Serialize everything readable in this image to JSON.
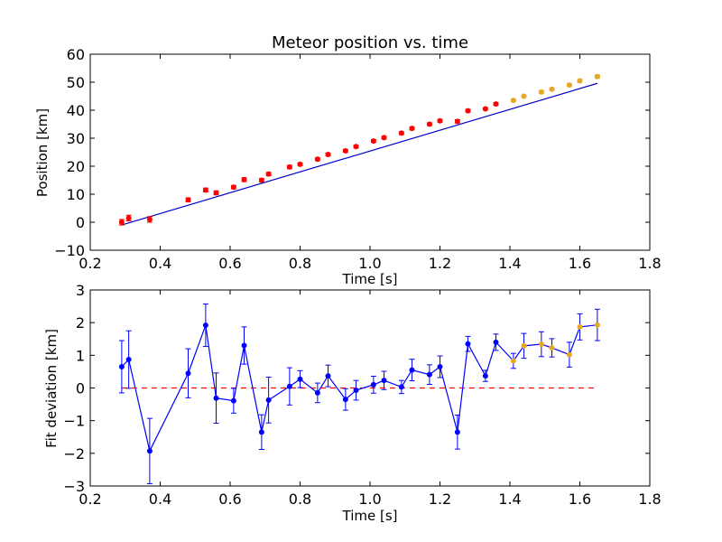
{
  "chart_data": [
    {
      "type": "scatter",
      "title": "Meteor position vs. time",
      "xlabel": "Time [s]",
      "ylabel": "Position [km]",
      "xlim": [
        0.2,
        1.8
      ],
      "ylim": [
        -10,
        60
      ],
      "xticks": [
        "0.2",
        "0.4",
        "0.6",
        "0.8",
        "1.0",
        "1.2",
        "1.4",
        "1.6",
        "1.8"
      ],
      "yticks": [
        "−10",
        "0",
        "10",
        "20",
        "30",
        "40",
        "50",
        "60"
      ],
      "grid": false,
      "fit_line": {
        "x": [
          0.29,
          1.65
        ],
        "y": [
          -1.0,
          49.6
        ],
        "color": "#0000cc"
      },
      "series": [
        {
          "color": "#ff0000",
          "points": [
            {
              "x": 0.29,
              "y": 0.0,
              "err": 1.0
            },
            {
              "x": 0.31,
              "y": 1.5,
              "err": 1.0
            },
            {
              "x": 0.37,
              "y": 1.0,
              "err": 1.0
            },
            {
              "x": 0.48,
              "y": 8.0,
              "err": 0.7
            },
            {
              "x": 0.53,
              "y": 11.5,
              "err": 0.7
            },
            {
              "x": 0.56,
              "y": 10.5,
              "err": 0.7
            },
            {
              "x": 0.61,
              "y": 12.5,
              "err": 0.6
            },
            {
              "x": 0.64,
              "y": 15.2,
              "err": 0.7
            },
            {
              "x": 0.69,
              "y": 15.0,
              "err": 0.6
            },
            {
              "x": 0.71,
              "y": 17.2,
              "err": 0.6
            },
            {
              "x": 0.77,
              "y": 19.7,
              "err": 0.6
            },
            {
              "x": 0.8,
              "y": 20.7,
              "err": 0.5
            },
            {
              "x": 0.85,
              "y": 22.5,
              "err": 0.5
            },
            {
              "x": 0.88,
              "y": 24.2,
              "err": 0.5
            },
            {
              "x": 0.93,
              "y": 25.5,
              "err": 0.5
            },
            {
              "x": 0.96,
              "y": 27.0,
              "err": 0.5
            },
            {
              "x": 1.01,
              "y": 29.0,
              "err": 0.5
            },
            {
              "x": 1.04,
              "y": 30.2,
              "err": 0.5
            },
            {
              "x": 1.09,
              "y": 31.8,
              "err": 0.5
            },
            {
              "x": 1.12,
              "y": 33.5,
              "err": 0.5
            },
            {
              "x": 1.17,
              "y": 35.0,
              "err": 0.5
            },
            {
              "x": 1.2,
              "y": 36.2,
              "err": 0.5
            },
            {
              "x": 1.25,
              "y": 36.0,
              "err": 0.6
            },
            {
              "x": 1.28,
              "y": 39.8,
              "err": 0.5
            },
            {
              "x": 1.33,
              "y": 40.5,
              "err": 0.4
            },
            {
              "x": 1.36,
              "y": 42.2,
              "err": 0.5
            }
          ]
        },
        {
          "color": "#e3a826",
          "points": [
            {
              "x": 1.41,
              "y": 43.5,
              "err": 0.4
            },
            {
              "x": 1.44,
              "y": 45.0,
              "err": 0.4
            },
            {
              "x": 1.49,
              "y": 46.5,
              "err": 0.5
            },
            {
              "x": 1.52,
              "y": 47.5,
              "err": 0.4
            },
            {
              "x": 1.57,
              "y": 49.0,
              "err": 0.4
            },
            {
              "x": 1.6,
              "y": 50.5,
              "err": 0.5
            },
            {
              "x": 1.65,
              "y": 52.0,
              "err": 0.6
            }
          ]
        }
      ]
    },
    {
      "type": "line",
      "title": "",
      "xlabel": "Time [s]",
      "ylabel": "Fit deviation [km]",
      "xlim": [
        0.2,
        1.8
      ],
      "ylim": [
        -3,
        3
      ],
      "xticks": [
        "0.2",
        "0.4",
        "0.6",
        "0.8",
        "1.0",
        "1.2",
        "1.4",
        "1.6",
        "1.8"
      ],
      "yticks": [
        "−3",
        "−2",
        "−1",
        "0",
        "1",
        "2",
        "3"
      ],
      "grid": false,
      "zero_line": {
        "y": 0,
        "x": [
          0.29,
          1.65
        ],
        "color": "#ff0000",
        "style": "dashed"
      },
      "line_color": "#0000ff",
      "points": [
        {
          "x": 0.29,
          "y": 0.65,
          "err": 0.8,
          "color": "#0000ff"
        },
        {
          "x": 0.31,
          "y": 0.87,
          "err": 0.88,
          "color": "#0000ff"
        },
        {
          "x": 0.37,
          "y": -1.93,
          "err": 1.0,
          "color": "#0000ff"
        },
        {
          "x": 0.48,
          "y": 0.45,
          "err": 0.75,
          "color": "#0000ff"
        },
        {
          "x": 0.53,
          "y": 1.92,
          "err": 0.65,
          "color": "#0000ff"
        },
        {
          "x": 0.56,
          "y": -0.31,
          "err": 0.77,
          "color": "#0000ff"
        },
        {
          "x": 0.61,
          "y": -0.39,
          "err": 0.38,
          "color": "#0000ff"
        },
        {
          "x": 0.64,
          "y": 1.3,
          "err": 0.57,
          "color": "#0000ff"
        },
        {
          "x": 0.69,
          "y": -1.35,
          "err": 0.53,
          "color": "#0000ff"
        },
        {
          "x": 0.71,
          "y": -0.37,
          "err": 0.7,
          "color": "#0000ff"
        },
        {
          "x": 0.77,
          "y": 0.05,
          "err": 0.57,
          "color": "#0000ff"
        },
        {
          "x": 0.8,
          "y": 0.27,
          "err": 0.26,
          "color": "#0000ff"
        },
        {
          "x": 0.85,
          "y": -0.15,
          "err": 0.3,
          "color": "#0000ff"
        },
        {
          "x": 0.88,
          "y": 0.37,
          "err": 0.33,
          "color": "#0000ff"
        },
        {
          "x": 0.93,
          "y": -0.35,
          "err": 0.33,
          "color": "#0000ff"
        },
        {
          "x": 0.96,
          "y": -0.07,
          "err": 0.3,
          "color": "#0000ff"
        },
        {
          "x": 1.01,
          "y": 0.1,
          "err": 0.26,
          "color": "#0000ff"
        },
        {
          "x": 1.04,
          "y": 0.23,
          "err": 0.28,
          "color": "#0000ff"
        },
        {
          "x": 1.09,
          "y": 0.03,
          "err": 0.2,
          "color": "#0000ff"
        },
        {
          "x": 1.12,
          "y": 0.55,
          "err": 0.33,
          "color": "#0000ff"
        },
        {
          "x": 1.17,
          "y": 0.41,
          "err": 0.3,
          "color": "#0000ff"
        },
        {
          "x": 1.2,
          "y": 0.65,
          "err": 0.33,
          "color": "#0000ff"
        },
        {
          "x": 1.25,
          "y": -1.35,
          "err": 0.52,
          "color": "#0000ff"
        },
        {
          "x": 1.28,
          "y": 1.35,
          "err": 0.23,
          "color": "#0000ff"
        },
        {
          "x": 1.33,
          "y": 0.37,
          "err": 0.17,
          "color": "#0000ff"
        },
        {
          "x": 1.36,
          "y": 1.4,
          "err": 0.25,
          "color": "#0000ff"
        },
        {
          "x": 1.41,
          "y": 0.83,
          "err": 0.23,
          "color": "#e3a826"
        },
        {
          "x": 1.44,
          "y": 1.29,
          "err": 0.38,
          "color": "#e3a826"
        },
        {
          "x": 1.49,
          "y": 1.34,
          "err": 0.38,
          "color": "#e3a826"
        },
        {
          "x": 1.52,
          "y": 1.23,
          "err": 0.28,
          "color": "#e3a826"
        },
        {
          "x": 1.57,
          "y": 1.02,
          "err": 0.38,
          "color": "#e3a826"
        },
        {
          "x": 1.6,
          "y": 1.87,
          "err": 0.4,
          "color": "#e3a826"
        },
        {
          "x": 1.65,
          "y": 1.93,
          "err": 0.48,
          "color": "#e3a826"
        }
      ]
    }
  ]
}
